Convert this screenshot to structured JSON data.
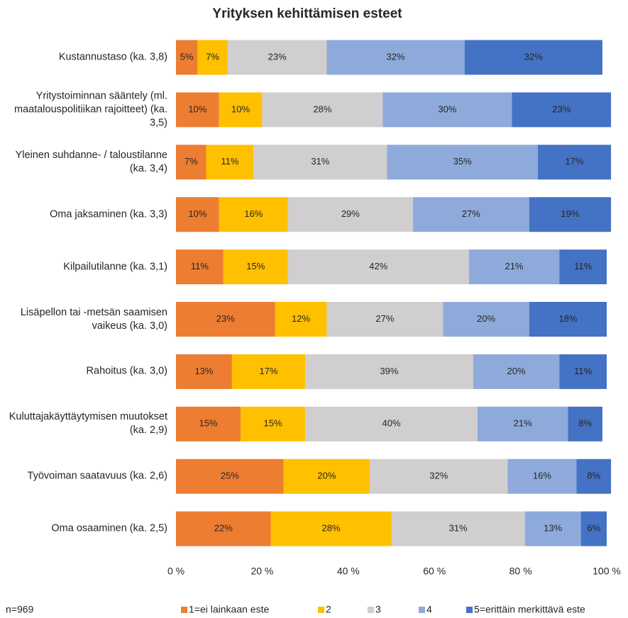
{
  "chart_data": {
    "type": "bar",
    "orientation": "horizontal",
    "stacked": true,
    "title": "Yrityksen kehittämisen esteet",
    "note": "n=969",
    "categories": [
      "Kustannustaso (ka. 3,8)",
      "Yritystoiminnan sääntely (ml. maatalouspolitiikan rajoitteet) (ka. 3,5)",
      "Yleinen suhdanne- / taloustilanne (ka. 3,4)",
      "Oma jaksaminen (ka. 3,3)",
      "Kilpailutilanne (ka. 3,1)",
      "Lisäpellon tai -metsän saamisen vaikeus (ka. 3,0)",
      "Rahoitus (ka. 3,0)",
      "Kuluttajakäyttäytymisen muutokset (ka. 2,9)",
      "Työvoiman saatavuus (ka. 2,6)",
      "Oma osaaminen (ka. 2,5)"
    ],
    "series": [
      {
        "name": "1=ei lainkaan este",
        "color": "#ed7d31",
        "values": [
          5,
          10,
          7,
          10,
          11,
          23,
          13,
          15,
          25,
          22
        ],
        "value_labels": [
          "5%",
          "10%",
          "7%",
          "10%",
          "11%",
          "23%",
          "13%",
          "15%",
          "25%",
          "22%"
        ]
      },
      {
        "name": "2",
        "color": "#ffc000",
        "values": [
          7,
          10,
          11,
          16,
          15,
          12,
          17,
          15,
          20,
          28
        ],
        "value_labels": [
          "7%",
          "10%",
          "11%",
          "16%",
          "15%",
          "12%",
          "17%",
          "15%",
          "20%",
          "28%"
        ]
      },
      {
        "name": "3",
        "color": "#d0cece",
        "values": [
          23,
          28,
          31,
          29,
          42,
          27,
          39,
          40,
          32,
          31
        ],
        "value_labels": [
          "23%",
          "28%",
          "31%",
          "29%",
          "42%",
          "27%",
          "39%",
          "40%",
          "32%",
          "31%"
        ]
      },
      {
        "name": "4",
        "color": "#8eaadb",
        "values": [
          32,
          30,
          35,
          27,
          21,
          20,
          20,
          21,
          16,
          13
        ],
        "value_labels": [
          "32%",
          "30%",
          "35%",
          "27%",
          "21%",
          "20%",
          "20%",
          "21%",
          "16%",
          "13%"
        ]
      },
      {
        "name": "5=erittäin merkittävä este",
        "color": "#4472c4",
        "values": [
          32,
          23,
          17,
          19,
          11,
          18,
          11,
          8,
          8,
          6
        ],
        "value_labels": [
          "32%",
          "23%",
          "17%",
          "19%",
          "11%",
          "18%",
          "11%",
          "8%",
          "8%",
          "6%"
        ]
      }
    ],
    "xlim": [
      0,
      100
    ],
    "xticks": [
      {
        "value": 0,
        "label": "0 %"
      },
      {
        "value": 20,
        "label": "20 %"
      },
      {
        "value": 40,
        "label": "40 %"
      },
      {
        "value": 60,
        "label": "60 %"
      },
      {
        "value": 80,
        "label": "80 %"
      },
      {
        "value": 100,
        "label": "100 %"
      }
    ],
    "legend": "bottom"
  }
}
